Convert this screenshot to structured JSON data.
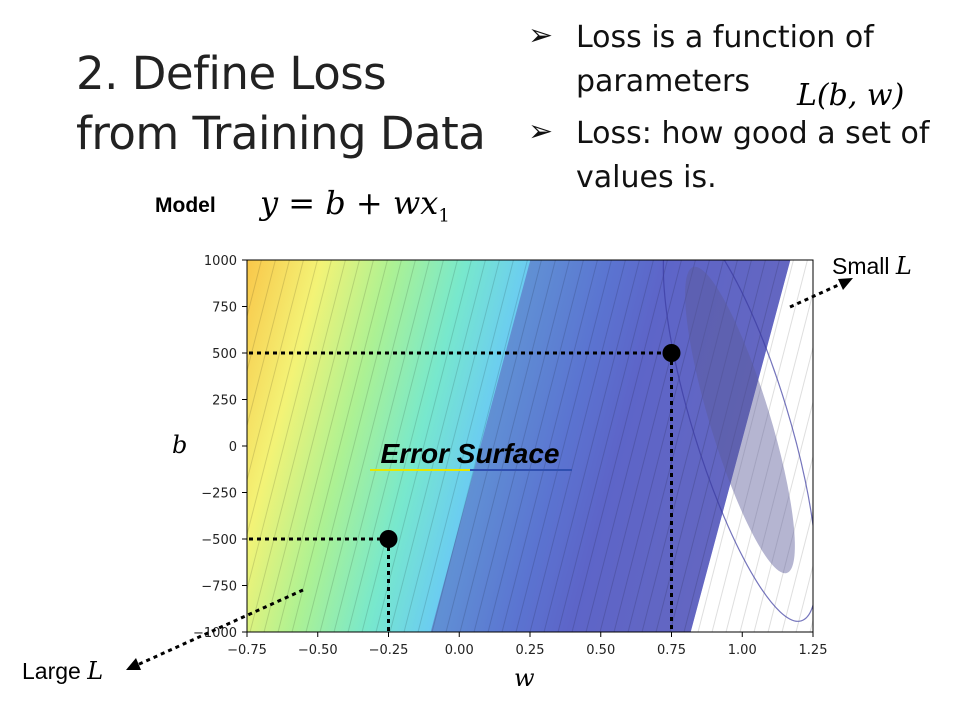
{
  "slide": {
    "title_line1": "2. Define Loss",
    "title_line2": "from Training Data",
    "bullets": [
      {
        "marker": "➢",
        "line1": "Loss is a function of",
        "line2": "parameters"
      },
      {
        "marker": "➢",
        "line1": "Loss: how good a set of",
        "line2": "values is."
      }
    ],
    "loss_function": "L(b, w)",
    "model_label": "Model",
    "model_equation": {
      "lhs": "y = b + wx",
      "subscript": "1"
    },
    "small_label": {
      "text": "Small ",
      "symbol": "L"
    },
    "large_label": {
      "text": "Large ",
      "symbol": "L"
    },
    "error_surface_label": "Error Surface",
    "colors": {
      "point": "#000000",
      "guide": "#000000",
      "underline_left": "#e6e600",
      "underline_right": "#2f4fb0"
    }
  },
  "chart_data": {
    "type": "heatmap",
    "title": "",
    "xlabel": "w",
    "ylabel": "b",
    "xlim": [
      -0.75,
      1.25
    ],
    "ylim": [
      -1000,
      1000
    ],
    "x_ticks": [
      "−0.75",
      "−0.50",
      "−0.25",
      "0.00",
      "0.25",
      "0.50",
      "0.75",
      "1.00",
      "1.25"
    ],
    "y_ticks": [
      "1000",
      "750",
      "500",
      "250",
      "0",
      "−250",
      "−500",
      "−750",
      "−1000"
    ],
    "x_tick_values": [
      -0.75,
      -0.5,
      -0.25,
      0.0,
      0.25,
      0.5,
      0.75,
      1.0,
      1.25
    ],
    "y_tick_values": [
      1000,
      750,
      500,
      250,
      0,
      -250,
      -500,
      -750,
      -1000
    ],
    "colormap": "jet",
    "points": [
      {
        "w": 0.75,
        "b": 500
      },
      {
        "w": -0.25,
        "b": -500
      }
    ]
  }
}
